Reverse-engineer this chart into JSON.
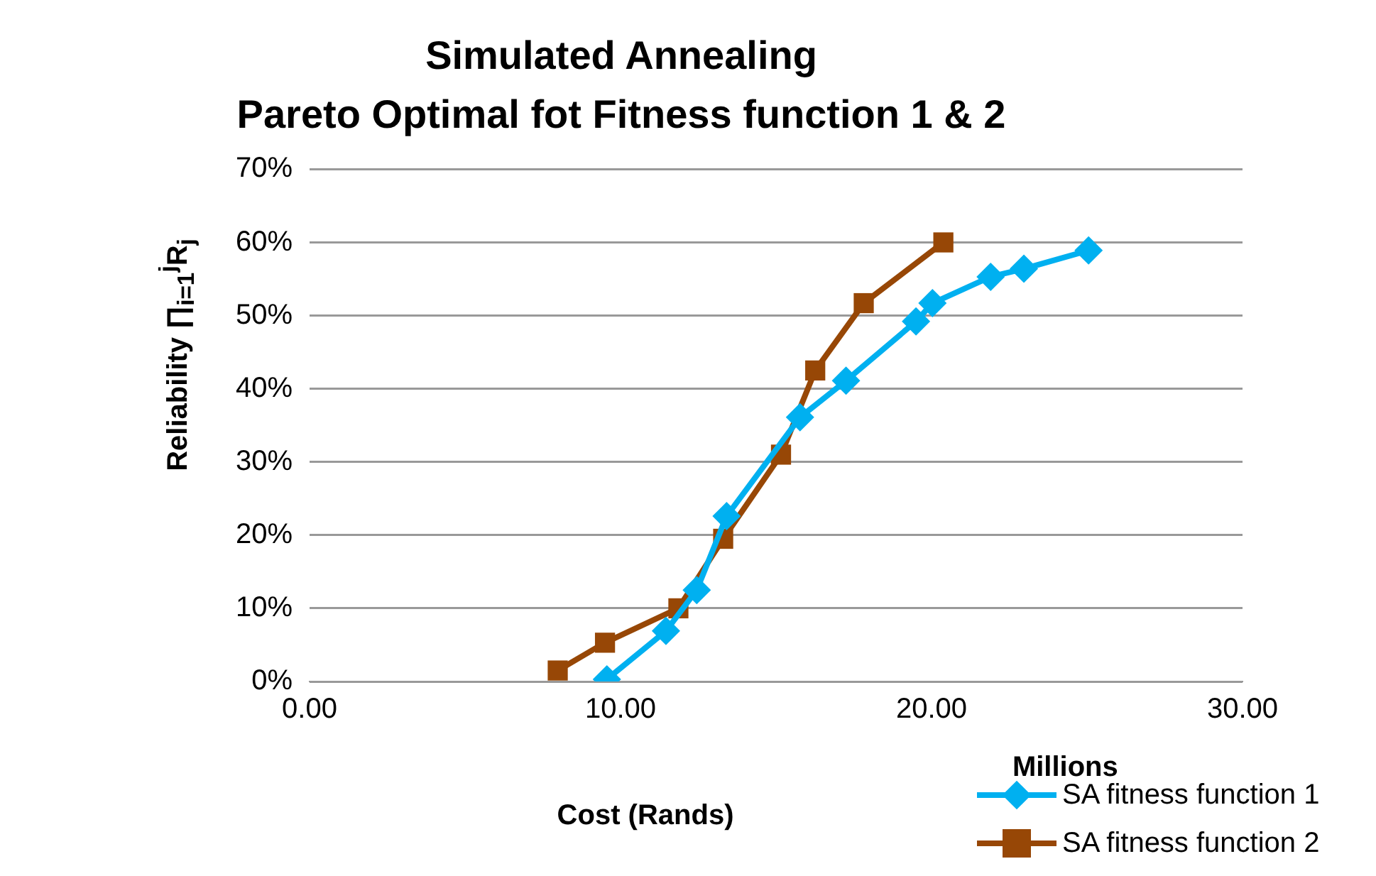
{
  "chart_data": {
    "type": "line",
    "title": "Simulated Annealing",
    "subtitle": "Pareto Optimal fot Fitness function 1 & 2",
    "xlabel": "Cost (Rands)",
    "ylabel": "Reliability ∏$_{i=1}$$^{j}$R$_{j}$",
    "annotations": [
      "Millions"
    ],
    "xlim": [
      0,
      30
    ],
    "xticks": [
      {
        "value": 0,
        "label": "0.00"
      },
      {
        "value": 10,
        "label": "10.00"
      },
      {
        "value": 20,
        "label": "20.00"
      },
      {
        "value": 30,
        "label": "30.00"
      }
    ],
    "ylim": [
      0,
      70
    ],
    "yticks": [
      {
        "value": 0,
        "label": "0%"
      },
      {
        "value": 10,
        "label": "10%"
      },
      {
        "value": 20,
        "label": "20%"
      },
      {
        "value": 30,
        "label": "30%"
      },
      {
        "value": 40,
        "label": "40%"
      },
      {
        "value": 50,
        "label": "50%"
      },
      {
        "value": 60,
        "label": "60%"
      },
      {
        "value": 70,
        "label": "70%"
      }
    ],
    "grid": "y",
    "legend": "bottom right",
    "line_style": "solid",
    "series": [
      {
        "name": "SA fitness function 1",
        "color": "#00b0f0",
        "marker": "diamond",
        "x": [
          9.56,
          11.46,
          12.45,
          13.41,
          15.77,
          17.25,
          19.5,
          20.03,
          21.9,
          22.97,
          25.05
        ],
        "values": [
          0.3,
          6.9,
          12.5,
          22.6,
          36.1,
          41.1,
          49.2,
          51.7,
          55.3,
          56.4,
          58.9
        ]
      },
      {
        "name": "SA fitness function 2",
        "color": "#974706",
        "marker": "square",
        "x": [
          7.98,
          9.5,
          11.86,
          13.3,
          15.16,
          16.26,
          17.82,
          20.38
        ],
        "values": [
          1.5,
          5.3,
          10.0,
          19.5,
          31.0,
          42.5,
          51.7,
          60.0
        ]
      }
    ]
  }
}
